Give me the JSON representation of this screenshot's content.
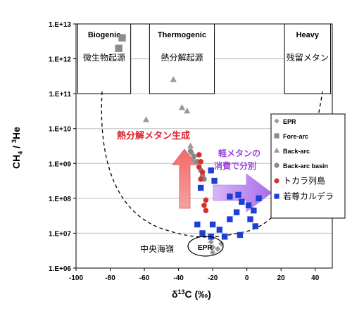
{
  "chart_data": {
    "type": "scatter",
    "xlabel": "δ13C (‰)",
    "ylabel": "CH4 / 3He",
    "xlim": [
      -100,
      50
    ],
    "ylim_log10": [
      6,
      13
    ],
    "x_ticks": [
      "-100",
      "-80",
      "-60",
      "-40",
      "-20",
      "0",
      "20",
      "40"
    ],
    "x_tick_values": [
      -100,
      -80,
      -60,
      -40,
      -20,
      0,
      20,
      40
    ],
    "y_ticks": [
      "1.E+06",
      "1.E+07",
      "1.E+08",
      "1.E+09",
      "1.E+10",
      "1.E+11",
      "1.E+12",
      "1.E+13"
    ],
    "y_tick_log10": [
      6,
      7,
      8,
      9,
      10,
      11,
      12,
      13
    ],
    "grid": "horizontal",
    "regions": [
      {
        "label_en": "Biogenic",
        "label_jp": "微生物起源",
        "x0": -99,
        "x1": -68,
        "ylog0": 11,
        "ylog1": 13
      },
      {
        "label_en": "Thermogenic",
        "label_jp": "熱分解起源",
        "x0": -57,
        "x1": -19,
        "ylog0": 11,
        "ylog1": 13
      },
      {
        "label_en": "Heavy",
        "label_jp": "残留メタン",
        "x0": 22,
        "x1": 49,
        "ylog0": 11,
        "ylog1": 13
      }
    ],
    "series": [
      {
        "name": "EPR",
        "marker": "diamond",
        "color": "#999999",
        "points": [
          [
            -21,
            6.75
          ],
          [
            -20,
            6.6
          ],
          [
            -17,
            6.55
          ],
          [
            -20,
            6.45
          ],
          [
            -15,
            6.7
          ]
        ]
      },
      {
        "name": "Fore-arc",
        "marker": "square",
        "color": "#8c8c8c",
        "points": [
          [
            -73,
            12.6
          ],
          [
            -75,
            12.3
          ]
        ]
      },
      {
        "name": "Back-arc",
        "marker": "triangle",
        "color": "#9a9a9a",
        "points": [
          [
            -43,
            11.4
          ],
          [
            -59,
            10.25
          ],
          [
            -38,
            10.6
          ],
          [
            -35,
            10.5
          ],
          [
            -33,
            9.5
          ],
          [
            -32,
            9.3
          ],
          [
            -31,
            9.1
          ]
        ]
      },
      {
        "name": "Back-arc basin",
        "marker": "circle",
        "color": "#888888",
        "points": [
          [
            -33,
            9.35
          ],
          [
            -31,
            9.2
          ],
          [
            -29,
            9.05
          ],
          [
            -27,
            8.8
          ],
          [
            -26,
            8.65
          ],
          [
            -25,
            8.55
          ]
        ]
      },
      {
        "name": "トカラ列島",
        "marker": "circle",
        "color": "#d6302a",
        "points": [
          [
            -28,
            9.25
          ],
          [
            -27,
            9.05
          ],
          [
            -28,
            8.9
          ],
          [
            -26,
            8.75
          ],
          [
            -27,
            8.55
          ],
          [
            -24,
            7.95
          ],
          [
            -25,
            7.8
          ],
          [
            -24,
            7.65
          ]
        ]
      },
      {
        "name": "若尊カルデラ",
        "marker": "square",
        "color": "#1d3fd6",
        "points": [
          [
            -21,
            8.8
          ],
          [
            -19,
            8.5
          ],
          [
            -27,
            8.3
          ],
          [
            -10,
            8.05
          ],
          [
            -5,
            8.1
          ],
          [
            -3,
            7.9
          ],
          [
            1,
            7.8
          ],
          [
            4,
            7.65
          ],
          [
            7,
            8.0
          ],
          [
            2,
            7.4
          ],
          [
            -6,
            7.6
          ],
          [
            -29,
            7.25
          ],
          [
            -20,
            7.25
          ],
          [
            -21,
            6.9
          ],
          [
            -13,
            6.9
          ],
          [
            -4,
            6.95
          ],
          [
            5,
            7.2
          ],
          [
            -10,
            7.4
          ],
          [
            -16,
            7.1
          ],
          [
            -26,
            7.0
          ]
        ]
      }
    ],
    "annotations": {
      "red_arrow": "熱分解メタン生成",
      "purple_arrow_line1": "軽メタンの",
      "purple_arrow_line2": "消費で分別",
      "epr_region": "中央海嶺",
      "epr_ellipse": "EPR"
    }
  }
}
